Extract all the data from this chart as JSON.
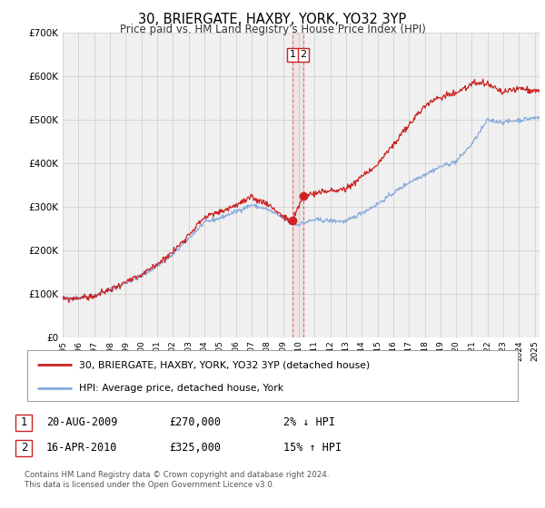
{
  "title": "30, BRIERGATE, HAXBY, YORK, YO32 3YP",
  "subtitle": "Price paid vs. HM Land Registry's House Price Index (HPI)",
  "legend_line1": "30, BRIERGATE, HAXBY, YORK, YO32 3YP (detached house)",
  "legend_line2": "HPI: Average price, detached house, York",
  "transaction1_date": "20-AUG-2009",
  "transaction1_price": "£270,000",
  "transaction1_hpi": "2% ↓ HPI",
  "transaction1_year": 2009.63,
  "transaction1_value": 270000,
  "transaction2_date": "16-APR-2010",
  "transaction2_price": "£325,000",
  "transaction2_hpi": "15% ↑ HPI",
  "transaction2_year": 2010.29,
  "transaction2_value": 325000,
  "footnote1": "Contains HM Land Registry data © Crown copyright and database right 2024.",
  "footnote2": "This data is licensed under the Open Government Licence v3.0.",
  "hpi_line_color": "#88aadd",
  "price_line_color": "#cc2222",
  "marker_color": "#cc2222",
  "vline_color": "#cc3333",
  "grid_color": "#cccccc",
  "bg_color": "#f0f0f0",
  "ylim": [
    0,
    700000
  ],
  "xlim_start": 1995.0,
  "xlim_end": 2025.3
}
